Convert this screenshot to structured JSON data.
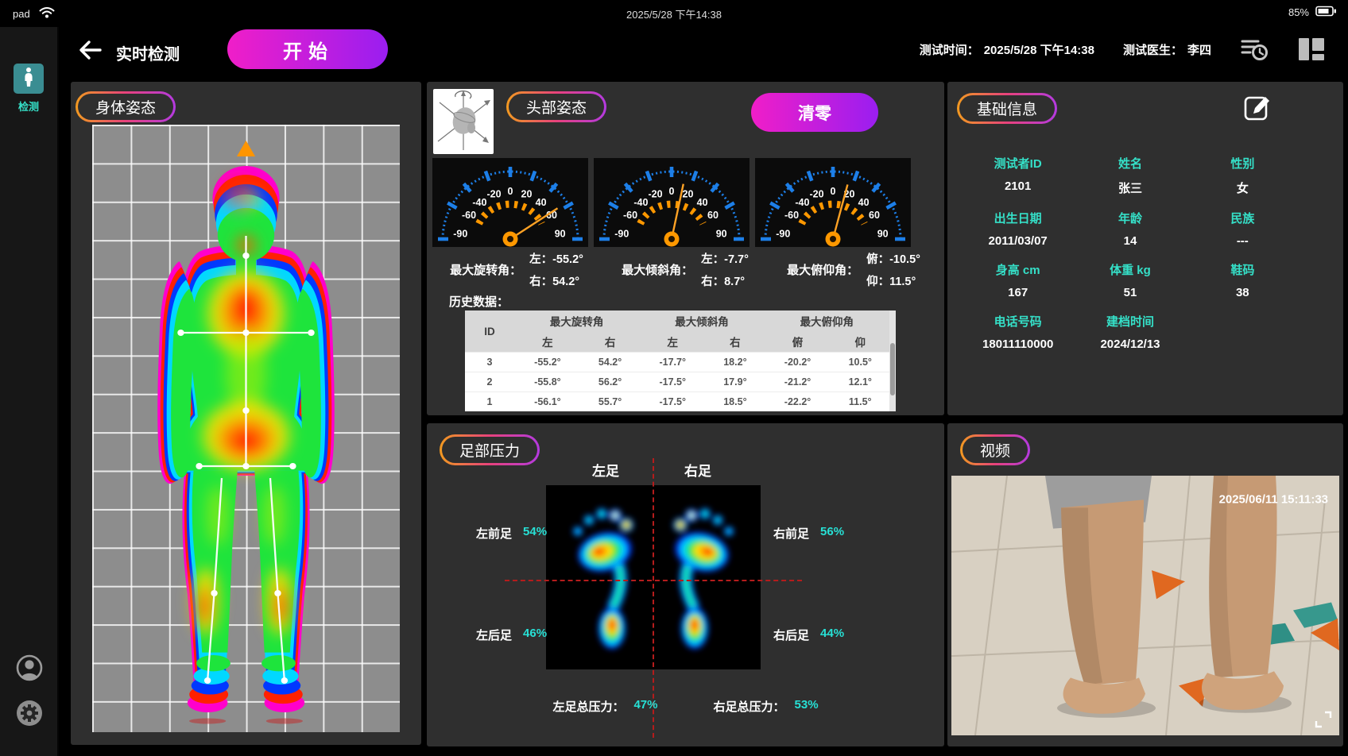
{
  "status_bar": {
    "device": "pad",
    "datetime": "2025/5/28 下午14:38",
    "battery": "85%"
  },
  "sidebar": {
    "detect": "检测"
  },
  "header": {
    "title": "实时检测",
    "start": "开始",
    "test_time_label": "测试时间：",
    "test_time": "2025/5/28 下午14:38",
    "doctor_label": "测试医生：",
    "doctor": "李四"
  },
  "body_posture": {
    "title": "身体姿态"
  },
  "head_posture": {
    "title": "头部姿态",
    "clear": "清零",
    "gauge_ticks": [
      -90,
      -60,
      -40,
      -20,
      0,
      20,
      40,
      60,
      90
    ],
    "gauges": [
      {
        "needle": 57
      },
      {
        "needle": 12
      },
      {
        "needle": 15
      }
    ],
    "readings": [
      {
        "label": "最大旋转角：",
        "l1": "左：",
        "v1": "-55.2°",
        "l2": "右：",
        "v2": "54.2°"
      },
      {
        "label": "最大倾斜角：",
        "l1": "左：",
        "v1": "-7.7°",
        "l2": "右：",
        "v2": "8.7°"
      },
      {
        "label": "最大俯仰角：",
        "l1": "俯：",
        "v1": "-10.5°",
        "l2": "仰：",
        "v2": "11.5°"
      }
    ],
    "history_label": "历史数据：",
    "table": {
      "id_header": "ID",
      "groups": [
        "最大旋转角",
        "最大倾斜角",
        "最大俯仰角"
      ],
      "sub": [
        "左",
        "右",
        "左",
        "右",
        "俯",
        "仰"
      ],
      "rows": [
        {
          "id": "3",
          "c1": "-55.2°",
          "c2": "54.2°",
          "c3": "-17.7°",
          "c4": "18.2°",
          "c5": "-20.2°",
          "c6": "10.5°"
        },
        {
          "id": "2",
          "c1": "-55.8°",
          "c2": "56.2°",
          "c3": "-17.5°",
          "c4": "17.9°",
          "c5": "-21.2°",
          "c6": "12.1°"
        },
        {
          "id": "1",
          "c1": "-56.1°",
          "c2": "55.7°",
          "c3": "-17.5°",
          "c4": "18.5°",
          "c5": "-22.2°",
          "c6": "11.5°"
        }
      ]
    }
  },
  "foot_pressure": {
    "title": "足部压力",
    "left_foot": "左足",
    "right_foot": "右足",
    "quadrants": [
      {
        "label": "左前足",
        "value": "54%"
      },
      {
        "label": "右前足",
        "value": "56%"
      },
      {
        "label": "左后足",
        "value": "46%"
      },
      {
        "label": "右后足",
        "value": "44%"
      }
    ],
    "left_total_label": "左足总压力：",
    "left_total": "47%",
    "right_total_label": "右足总压力：",
    "right_total": "53%"
  },
  "basic_info": {
    "title": "基础信息",
    "fields": [
      {
        "label": "测试者ID",
        "value": "2101"
      },
      {
        "label": "姓名",
        "value": "张三"
      },
      {
        "label": "性别",
        "value": "女"
      },
      {
        "label": "出生日期",
        "value": "2011/03/07"
      },
      {
        "label": "年龄",
        "value": "14"
      },
      {
        "label": "民族",
        "value": "---"
      },
      {
        "label": "身高 cm",
        "value": "167"
      },
      {
        "label": "体重 kg",
        "value": "51"
      },
      {
        "label": "鞋码",
        "value": "38"
      },
      {
        "label": "电话号码",
        "value": "18011110000"
      },
      {
        "label": "建档时间",
        "value": "2024/12/13"
      }
    ]
  },
  "video": {
    "title": "视频",
    "timestamp": "2025/06/11 15:11:33"
  },
  "colors": {
    "accent_cyan": "#35e0c8",
    "value_cyan": "#27e0d5",
    "gauge_blue": "#1d7fe8",
    "gauge_orange": "#ff9800",
    "pill_gradient": "#f29a20→#b43ae0",
    "button_gradient": "#f01ec8→#9a1ef0",
    "panel_bg": "#2f2f2f"
  }
}
